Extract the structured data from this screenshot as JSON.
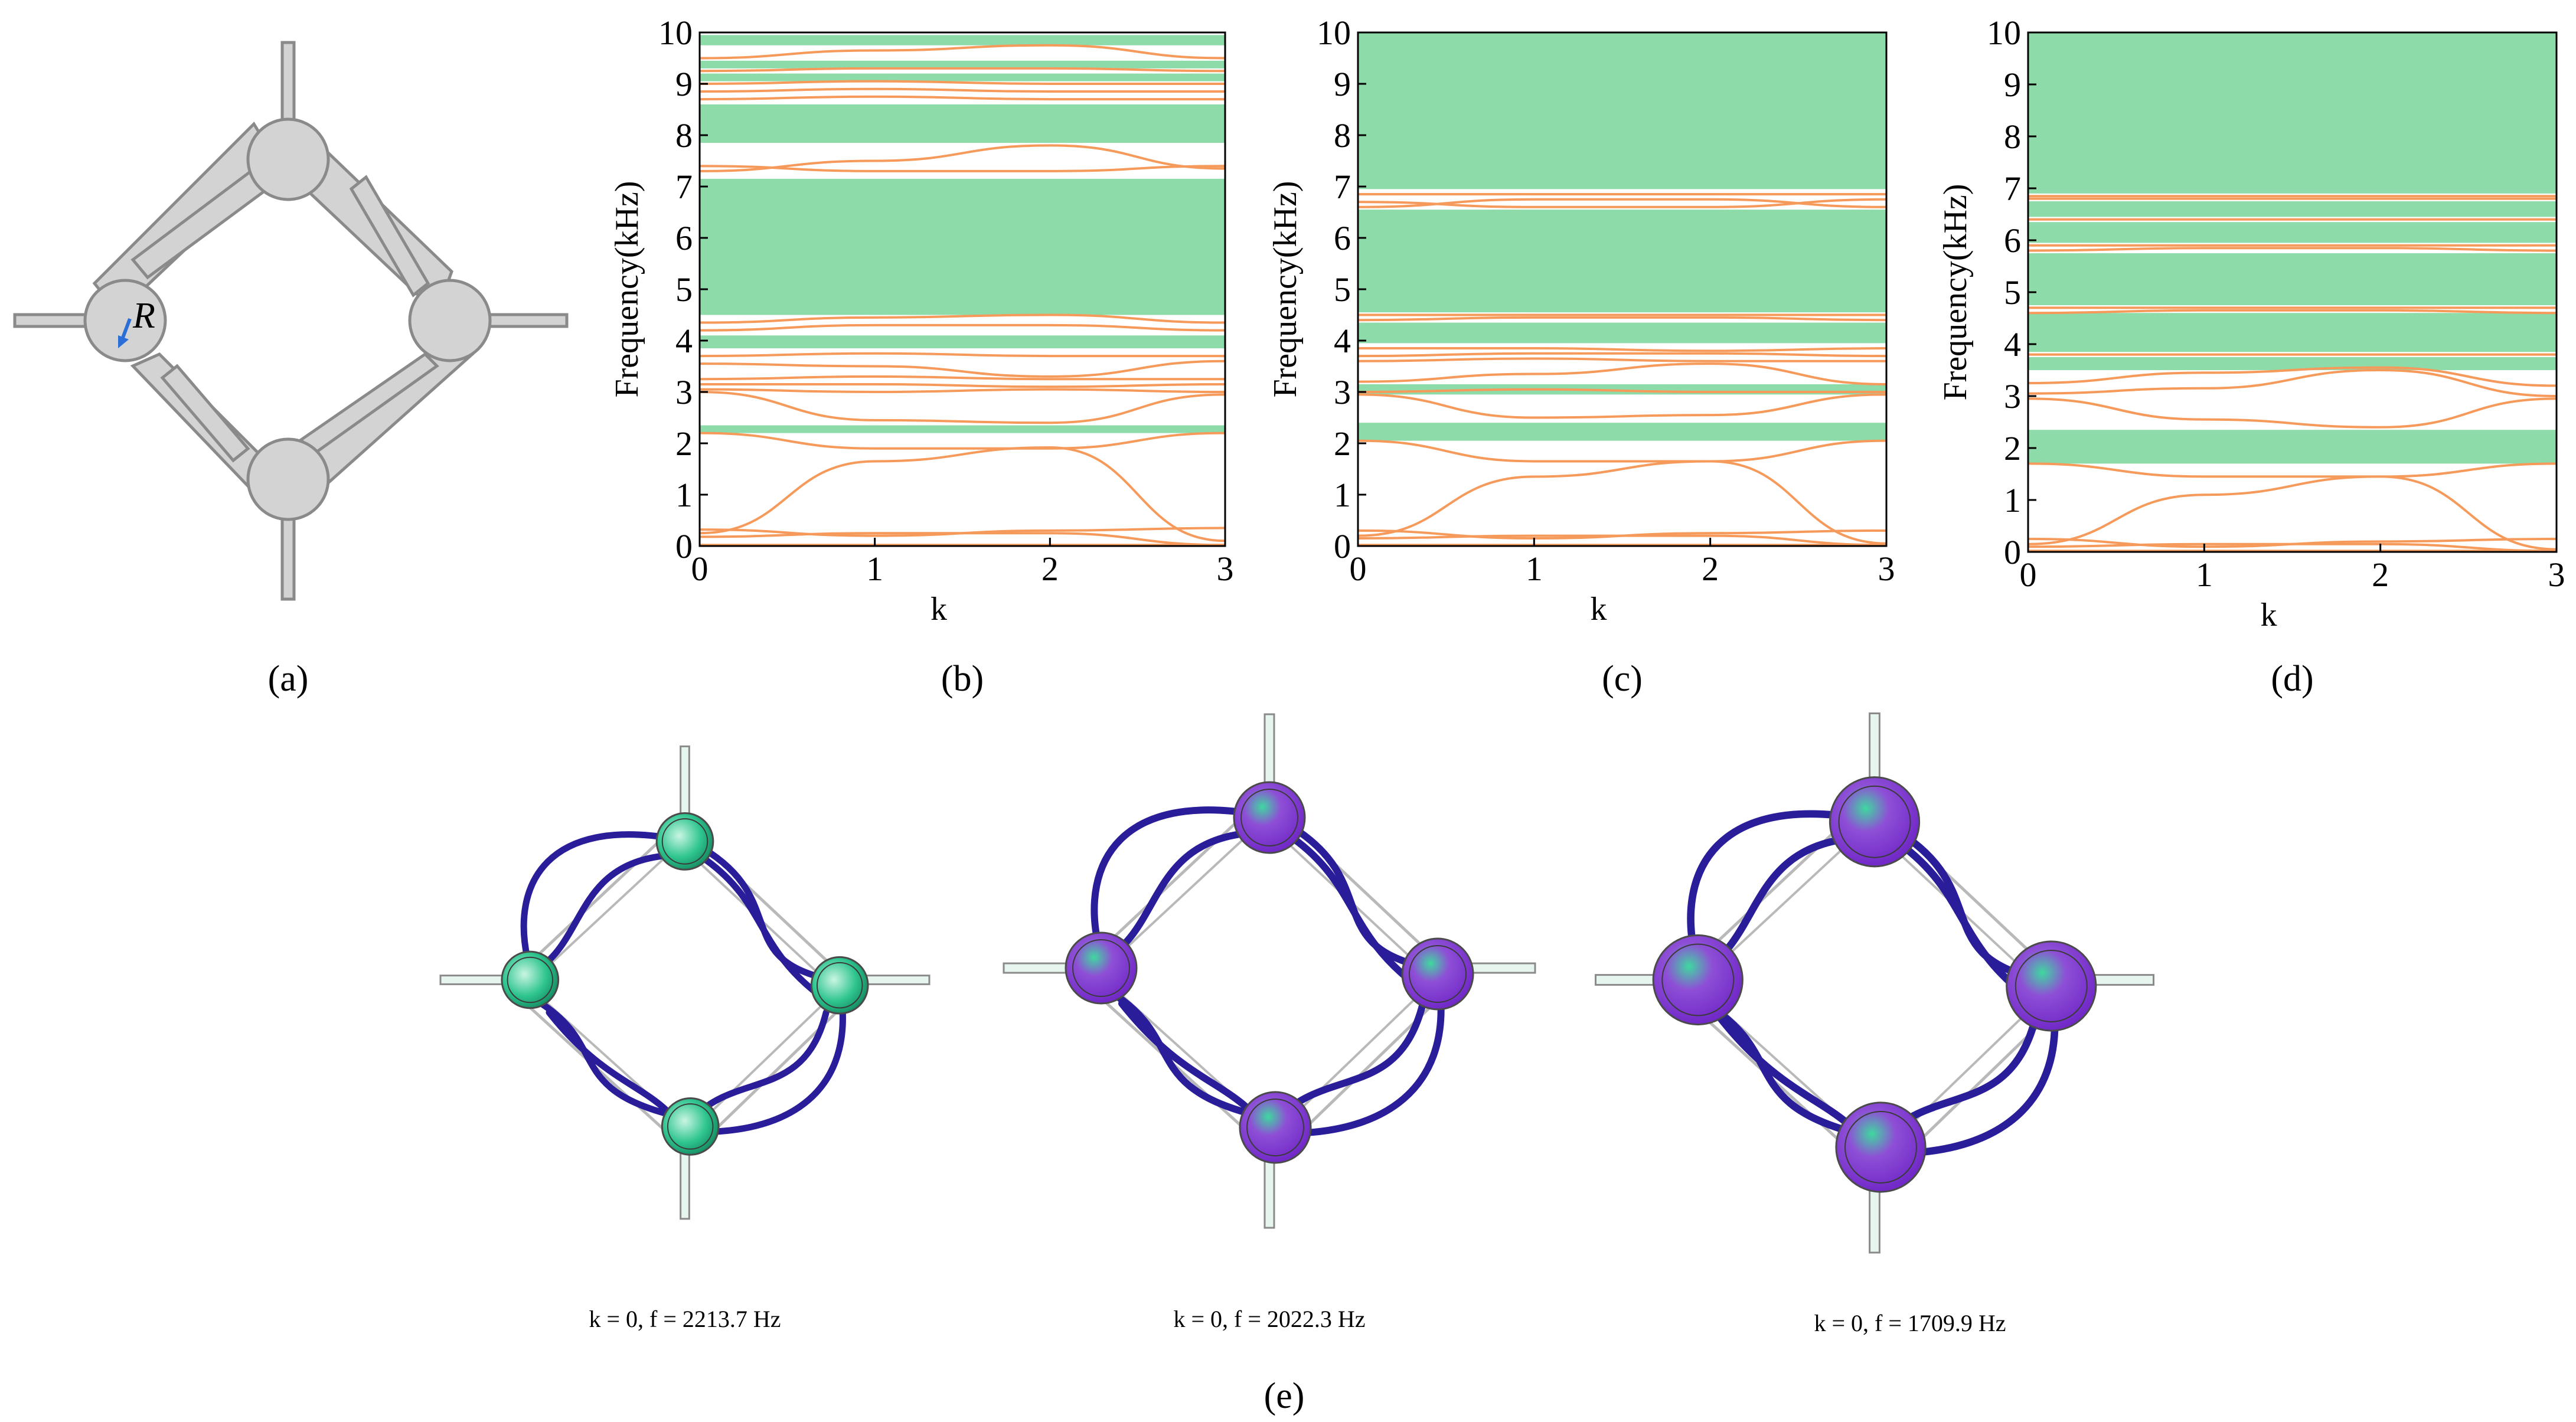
{
  "unit_cell": {
    "radius_label": "R",
    "caption": "(a)"
  },
  "chart_data": [
    {
      "type": "line",
      "caption": "(b)",
      "xlabel": "k",
      "ylabel": "Frequency(kHz)",
      "xlim": [
        0,
        3
      ],
      "ylim": [
        0,
        10
      ],
      "xticks": [
        "0",
        "1",
        "2",
        "3"
      ],
      "yticks": [
        "0",
        "1",
        "2",
        "3",
        "4",
        "5",
        "6",
        "7",
        "8",
        "9",
        "10"
      ],
      "band_gaps": [
        [
          2.2,
          2.35
        ],
        [
          3.85,
          4.1
        ],
        [
          4.5,
          7.15
        ],
        [
          7.85,
          8.6
        ],
        [
          9.05,
          9.2
        ],
        [
          9.3,
          9.45
        ],
        [
          9.75,
          9.95
        ]
      ],
      "bands": [
        [
          0.02,
          0.02,
          0.02,
          0.02
        ],
        [
          0.18,
          0.25,
          0.25,
          0.02
        ],
        [
          0.32,
          0.2,
          0.3,
          0.35
        ],
        [
          0.25,
          1.65,
          1.92,
          0.1
        ],
        [
          2.2,
          1.9,
          1.9,
          2.2
        ],
        [
          3.0,
          2.45,
          2.4,
          2.95
        ],
        [
          3.05,
          3.0,
          3.05,
          3.0
        ],
        [
          3.15,
          3.15,
          3.1,
          3.15
        ],
        [
          3.25,
          3.3,
          3.25,
          3.25
        ],
        [
          3.55,
          3.5,
          3.3,
          3.6
        ],
        [
          3.7,
          3.75,
          3.7,
          3.7
        ],
        [
          4.2,
          4.3,
          4.3,
          4.2
        ],
        [
          4.35,
          4.45,
          4.5,
          4.35
        ],
        [
          7.3,
          7.5,
          7.8,
          7.35
        ],
        [
          7.4,
          7.3,
          7.3,
          7.4
        ],
        [
          8.7,
          8.75,
          8.7,
          8.7
        ],
        [
          8.85,
          8.9,
          8.85,
          8.85
        ],
        [
          9.0,
          9.05,
          9.0,
          9.0
        ],
        [
          9.25,
          9.3,
          9.3,
          9.25
        ],
        [
          9.5,
          9.65,
          9.75,
          9.5
        ]
      ]
    },
    {
      "type": "line",
      "caption": "(c)",
      "xlabel": "k",
      "ylabel": "Frequency(kHz)",
      "xlim": [
        0,
        3
      ],
      "ylim": [
        0,
        10
      ],
      "xticks": [
        "0",
        "1",
        "2",
        "3"
      ],
      "yticks": [
        "0",
        "1",
        "2",
        "3",
        "4",
        "5",
        "6",
        "7",
        "8",
        "9",
        "10"
      ],
      "band_gaps": [
        [
          2.05,
          2.4
        ],
        [
          2.95,
          3.15
        ],
        [
          3.95,
          4.35
        ],
        [
          4.55,
          6.55
        ],
        [
          6.95,
          10.0
        ]
      ],
      "bands": [
        [
          0.02,
          0.02,
          0.02,
          0.02
        ],
        [
          0.15,
          0.2,
          0.2,
          0.02
        ],
        [
          0.3,
          0.15,
          0.25,
          0.3
        ],
        [
          0.2,
          1.35,
          1.65,
          0.05
        ],
        [
          2.05,
          1.65,
          1.65,
          2.05
        ],
        [
          2.95,
          2.5,
          2.55,
          2.95
        ],
        [
          3.0,
          3.05,
          3.0,
          3.0
        ],
        [
          3.2,
          3.35,
          3.55,
          3.15
        ],
        [
          3.6,
          3.65,
          3.6,
          3.6
        ],
        [
          3.7,
          3.75,
          3.75,
          3.7
        ],
        [
          3.85,
          3.85,
          3.8,
          3.85
        ],
        [
          4.4,
          4.45,
          4.45,
          4.4
        ],
        [
          4.5,
          4.5,
          4.5,
          4.5
        ],
        [
          6.6,
          6.75,
          6.75,
          6.6
        ],
        [
          6.7,
          6.6,
          6.6,
          6.75
        ],
        [
          6.85,
          6.85,
          6.85,
          6.85
        ]
      ]
    },
    {
      "type": "line",
      "caption": "(d)",
      "xlabel": "k",
      "ylabel": "Frequency(kHz)",
      "xlim": [
        0,
        3
      ],
      "ylim": [
        0,
        10
      ],
      "xticks": [
        "0",
        "1",
        "2",
        "3"
      ],
      "yticks": [
        "0",
        "1",
        "2",
        "3",
        "4",
        "5",
        "6",
        "7",
        "8",
        "9",
        "10"
      ],
      "band_gaps": [
        [
          1.7,
          2.35
        ],
        [
          3.5,
          3.75
        ],
        [
          3.85,
          4.6
        ],
        [
          4.75,
          5.75
        ],
        [
          5.95,
          6.35
        ],
        [
          6.45,
          6.75
        ],
        [
          6.9,
          10.0
        ]
      ],
      "bands": [
        [
          0.02,
          0.02,
          0.02,
          0.02
        ],
        [
          0.1,
          0.15,
          0.15,
          0.02
        ],
        [
          0.25,
          0.1,
          0.2,
          0.25
        ],
        [
          0.15,
          1.1,
          1.45,
          0.05
        ],
        [
          1.7,
          1.45,
          1.45,
          1.7
        ],
        [
          2.95,
          2.55,
          2.4,
          2.95
        ],
        [
          3.05,
          3.15,
          3.5,
          3.0
        ],
        [
          3.25,
          3.45,
          3.55,
          3.2
        ],
        [
          3.8,
          3.8,
          3.8,
          3.8
        ],
        [
          4.6,
          4.65,
          4.65,
          4.6
        ],
        [
          4.7,
          4.7,
          4.7,
          4.7
        ],
        [
          5.8,
          5.85,
          5.85,
          5.8
        ],
        [
          5.9,
          5.9,
          5.9,
          5.9
        ],
        [
          6.4,
          6.4,
          6.4,
          6.4
        ],
        [
          6.8,
          6.8,
          6.8,
          6.8
        ],
        [
          6.85,
          6.85,
          6.85,
          6.85
        ]
      ]
    }
  ],
  "mode_shapes": {
    "caption": "(e)",
    "labels": [
      "k = 0, f = 2213.7 Hz",
      "k = 0, f = 2022.3 Hz",
      "k = 0, f = 1709.9 Hz"
    ]
  },
  "colors": {
    "band_gap": "#8ddba9",
    "band_line": "#f59a5a",
    "frame": "#c8c8c8",
    "mode_green": "#2fc58f",
    "mode_purple": "#8a2be2",
    "mode_blue": "#2a1d9a"
  }
}
